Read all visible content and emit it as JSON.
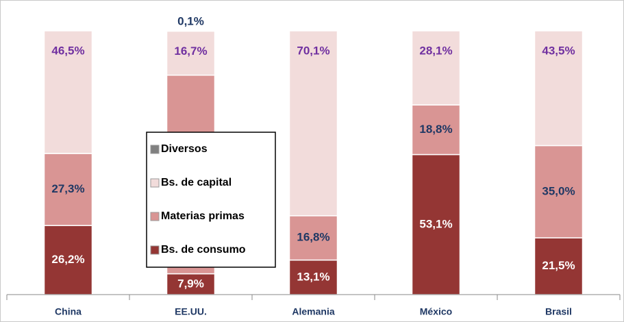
{
  "chart_data": {
    "type": "stacked_bar",
    "categories": [
      "China",
      "EE.UU.",
      "Alemania",
      "México",
      "Brasil"
    ],
    "ylim": [
      0,
      100
    ],
    "series": [
      {
        "name": "Bs. de consumo",
        "color": "#943634",
        "values": [
          26.2,
          7.9,
          13.1,
          53.1,
          21.5
        ],
        "value_labels": [
          "26,2%",
          "7,9%",
          "13,1%",
          "53,1%",
          "21,5%"
        ]
      },
      {
        "name": "Materias primas",
        "color": "#d99594",
        "values": [
          27.3,
          75.3,
          16.8,
          18.8,
          35.0
        ],
        "value_labels": [
          "27,3%",
          "75,3%",
          "16,8%",
          "18,8%",
          "35,0%"
        ]
      },
      {
        "name": "Bs. de capital",
        "color": "#f2dcdb",
        "values": [
          46.5,
          16.7,
          70.1,
          28.1,
          43.5
        ],
        "value_labels": [
          "46,5%",
          "16,7%",
          "70,1%",
          "28,1%",
          "43,5%"
        ]
      },
      {
        "name": "Diversos",
        "color": "#808080",
        "values": [
          null,
          0.1,
          null,
          null,
          null
        ],
        "value_labels": [
          null,
          "0,1%",
          null,
          null,
          null
        ]
      }
    ],
    "legend": "center-left"
  }
}
